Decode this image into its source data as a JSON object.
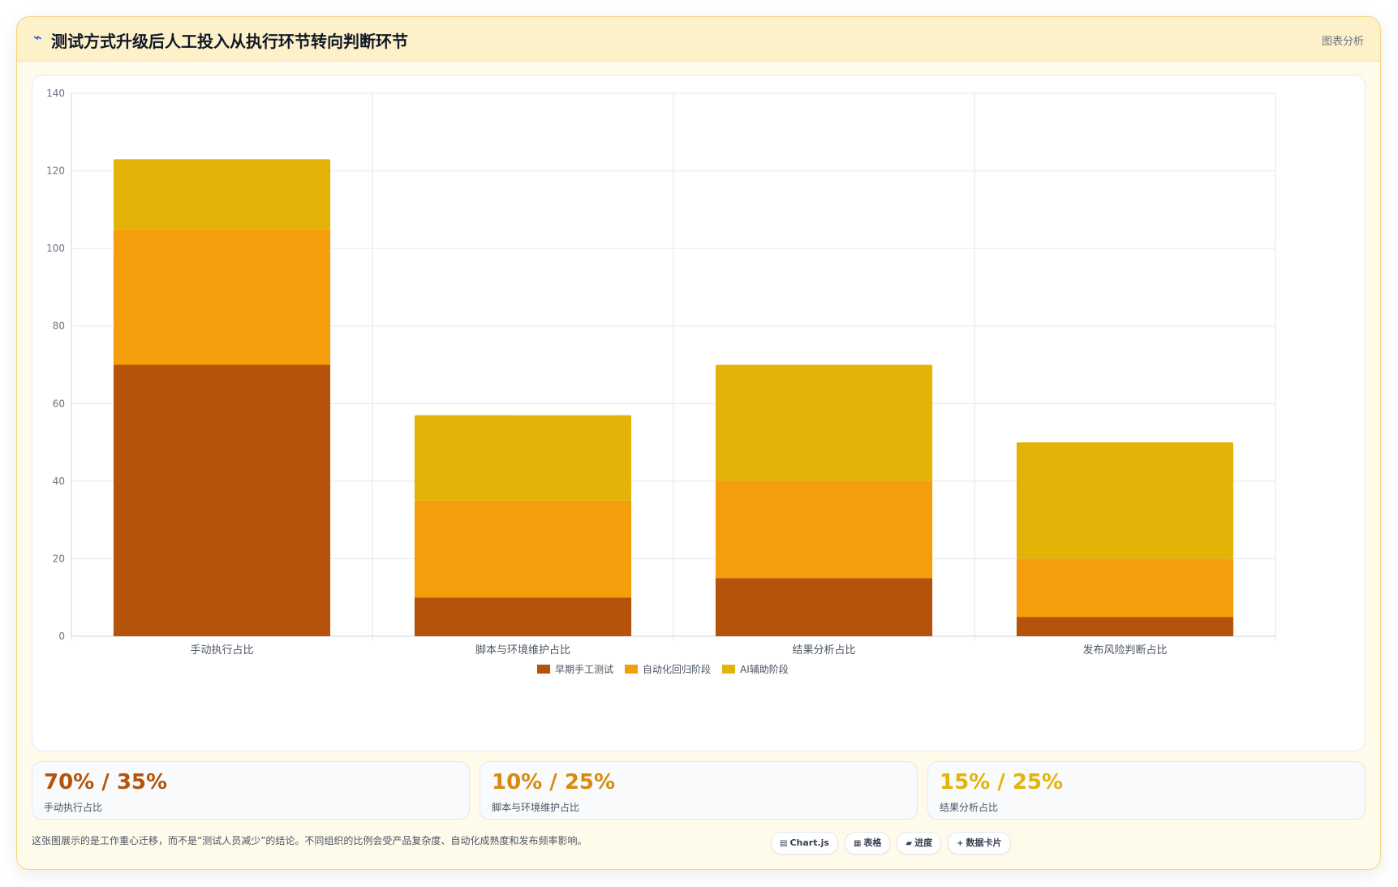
{
  "header": {
    "title": "测试方式升级后人工投入从执行环节转向判断环节",
    "tag": "图表分析",
    "icon": "pulse-icon"
  },
  "chart_data": {
    "type": "bar",
    "stacked": true,
    "categories": [
      "手动执行占比",
      "脚本与环境维护占比",
      "结果分析占比",
      "发布风险判断占比"
    ],
    "series": [
      {
        "name": "早期手工测试",
        "values": [
          70,
          10,
          15,
          5
        ],
        "color": "#b45309"
      },
      {
        "name": "自动化回归阶段",
        "values": [
          35,
          25,
          25,
          15
        ],
        "color": "#f59e0b"
      },
      {
        "name": "AI辅助阶段",
        "values": [
          18,
          22,
          30,
          30
        ],
        "color": "#e4b308"
      }
    ],
    "title": "",
    "xlabel": "",
    "ylabel": "",
    "ylim": [
      0,
      140
    ],
    "yticks": [
      0,
      20,
      40,
      60,
      80,
      100,
      120,
      140
    ],
    "grid": true,
    "legend": "bottom"
  },
  "stats": [
    {
      "value": "70% / 35%",
      "label": "手动执行占比",
      "color": "#b45309"
    },
    {
      "value": "10% / 25%",
      "label": "脚本与环境维护占比",
      "color": "#d98a0b"
    },
    {
      "value": "15% / 25%",
      "label": "结果分析占比",
      "color": "#e4b308"
    }
  ],
  "footnote": "这张图展示的是工作重心迁移，而不是“测试人员减少”的结论。不同组织的比例会受产品复杂度、自动化成熟度和发布频率影响。",
  "pills": [
    {
      "icon": "chart-icon",
      "glyph": "▤",
      "label": "Chart.js"
    },
    {
      "icon": "table-icon",
      "glyph": "▦",
      "label": "表格"
    },
    {
      "icon": "progress-icon",
      "glyph": "▰",
      "label": "进度"
    },
    {
      "icon": "plus-icon",
      "glyph": "+",
      "label": "数据卡片"
    }
  ]
}
